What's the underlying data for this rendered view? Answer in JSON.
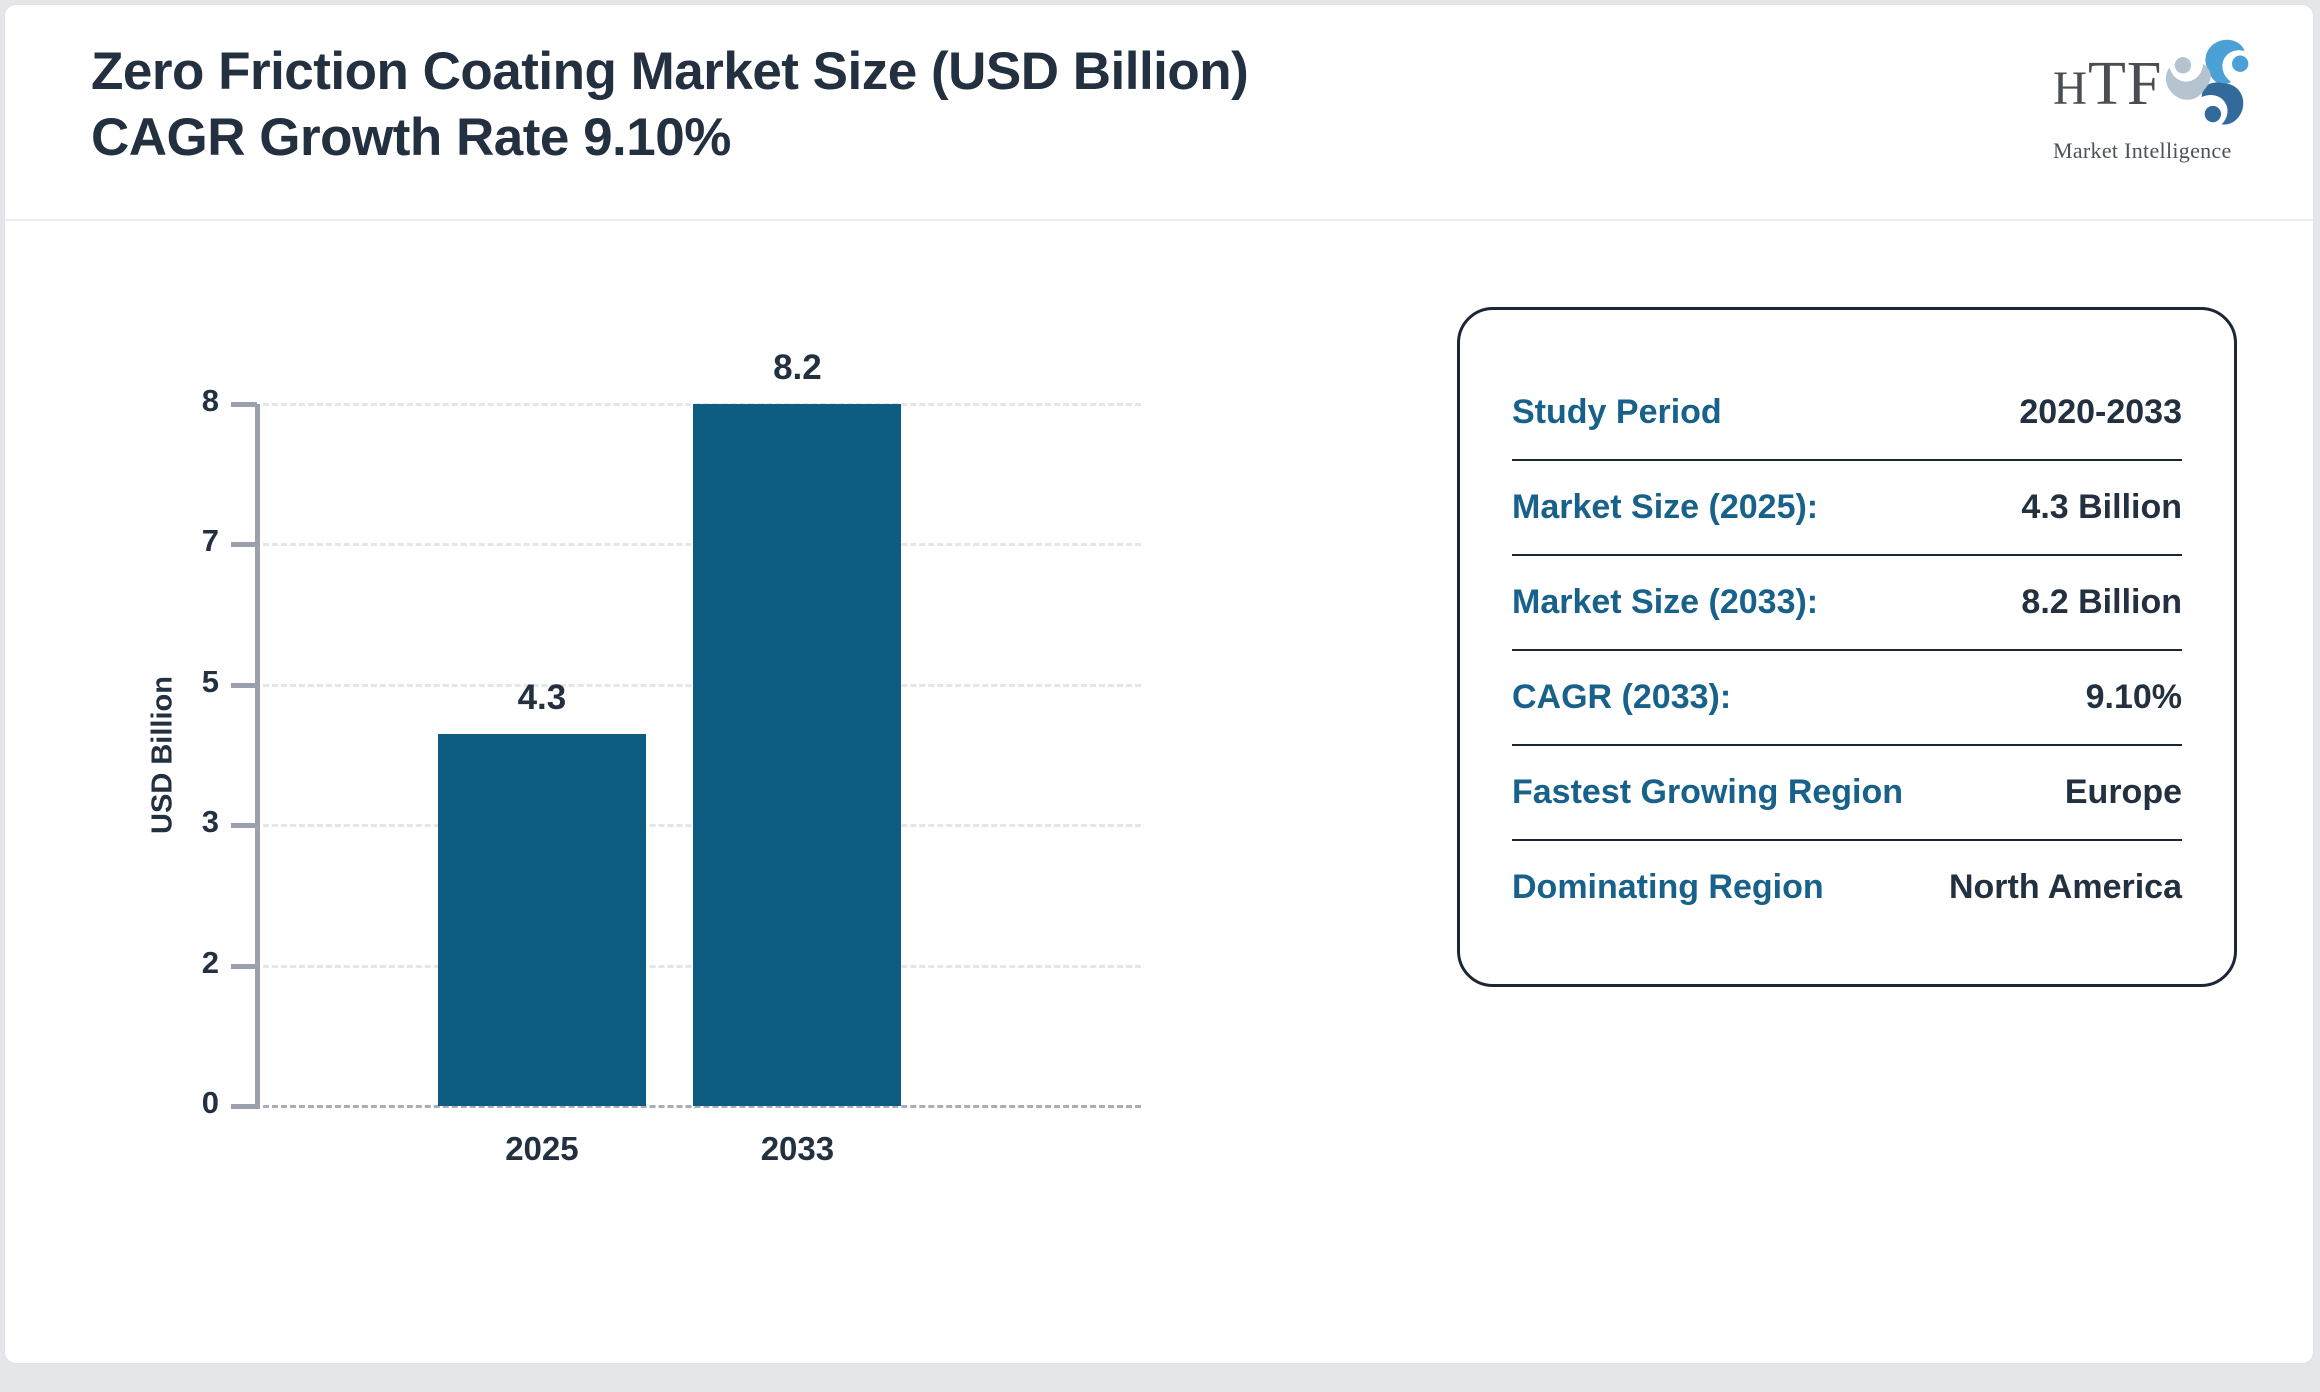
{
  "header": {
    "title_line1": "Zero Friction Coating Market Size (USD Billion)",
    "title_line2": "CAGR Growth Rate 9.10%",
    "logo": {
      "text": "HTF",
      "subtext": "Market Intelligence"
    }
  },
  "chart_data": {
    "type": "bar",
    "title": "Zero Friction Coating Market Size (USD Billion)",
    "categories": [
      "2025",
      "2033"
    ],
    "values": [
      4.3,
      8.2
    ],
    "bar_labels": [
      "4.3",
      "8.2"
    ],
    "xlabel": "",
    "ylabel": "USD Billion",
    "ylim": [
      0,
      8
    ],
    "y_ticks_top_to_bottom": [
      "8",
      "7",
      "5",
      "3",
      "2",
      "0"
    ],
    "y_tick_stops": [
      0,
      2,
      3,
      5,
      7,
      8
    ],
    "grid": "horizontal dashed, zero line darker dashed",
    "legend": "none",
    "layout": {
      "bar_centers_frac": [
        0.32,
        0.61
      ],
      "bar_width_frac": 0.236
    }
  },
  "info_panel": {
    "rows": [
      {
        "label": "Study Period",
        "value": "2020-2033"
      },
      {
        "label": "Market Size (2025):",
        "value": "4.3 Billion"
      },
      {
        "label": "Market Size (2033):",
        "value": "8.2 Billion"
      },
      {
        "label": "CAGR (2033):",
        "value": "9.10%"
      },
      {
        "label": "Fastest Growing Region",
        "value": "Europe"
      },
      {
        "label": "Dominating Region",
        "value": "North America"
      }
    ]
  },
  "colors": {
    "bar": "#0e5c81",
    "panel_label": "#17618a",
    "dark_text": "#223040",
    "axis": "#9aa1ac",
    "gridline": "#e4e6e9",
    "zero_line": "#a9aeb6",
    "panel_border": "#1b2735",
    "logo_blue_light": "#4ba1d6",
    "logo_blue_dark": "#336a9c",
    "logo_gray": "#b4c3cf"
  }
}
